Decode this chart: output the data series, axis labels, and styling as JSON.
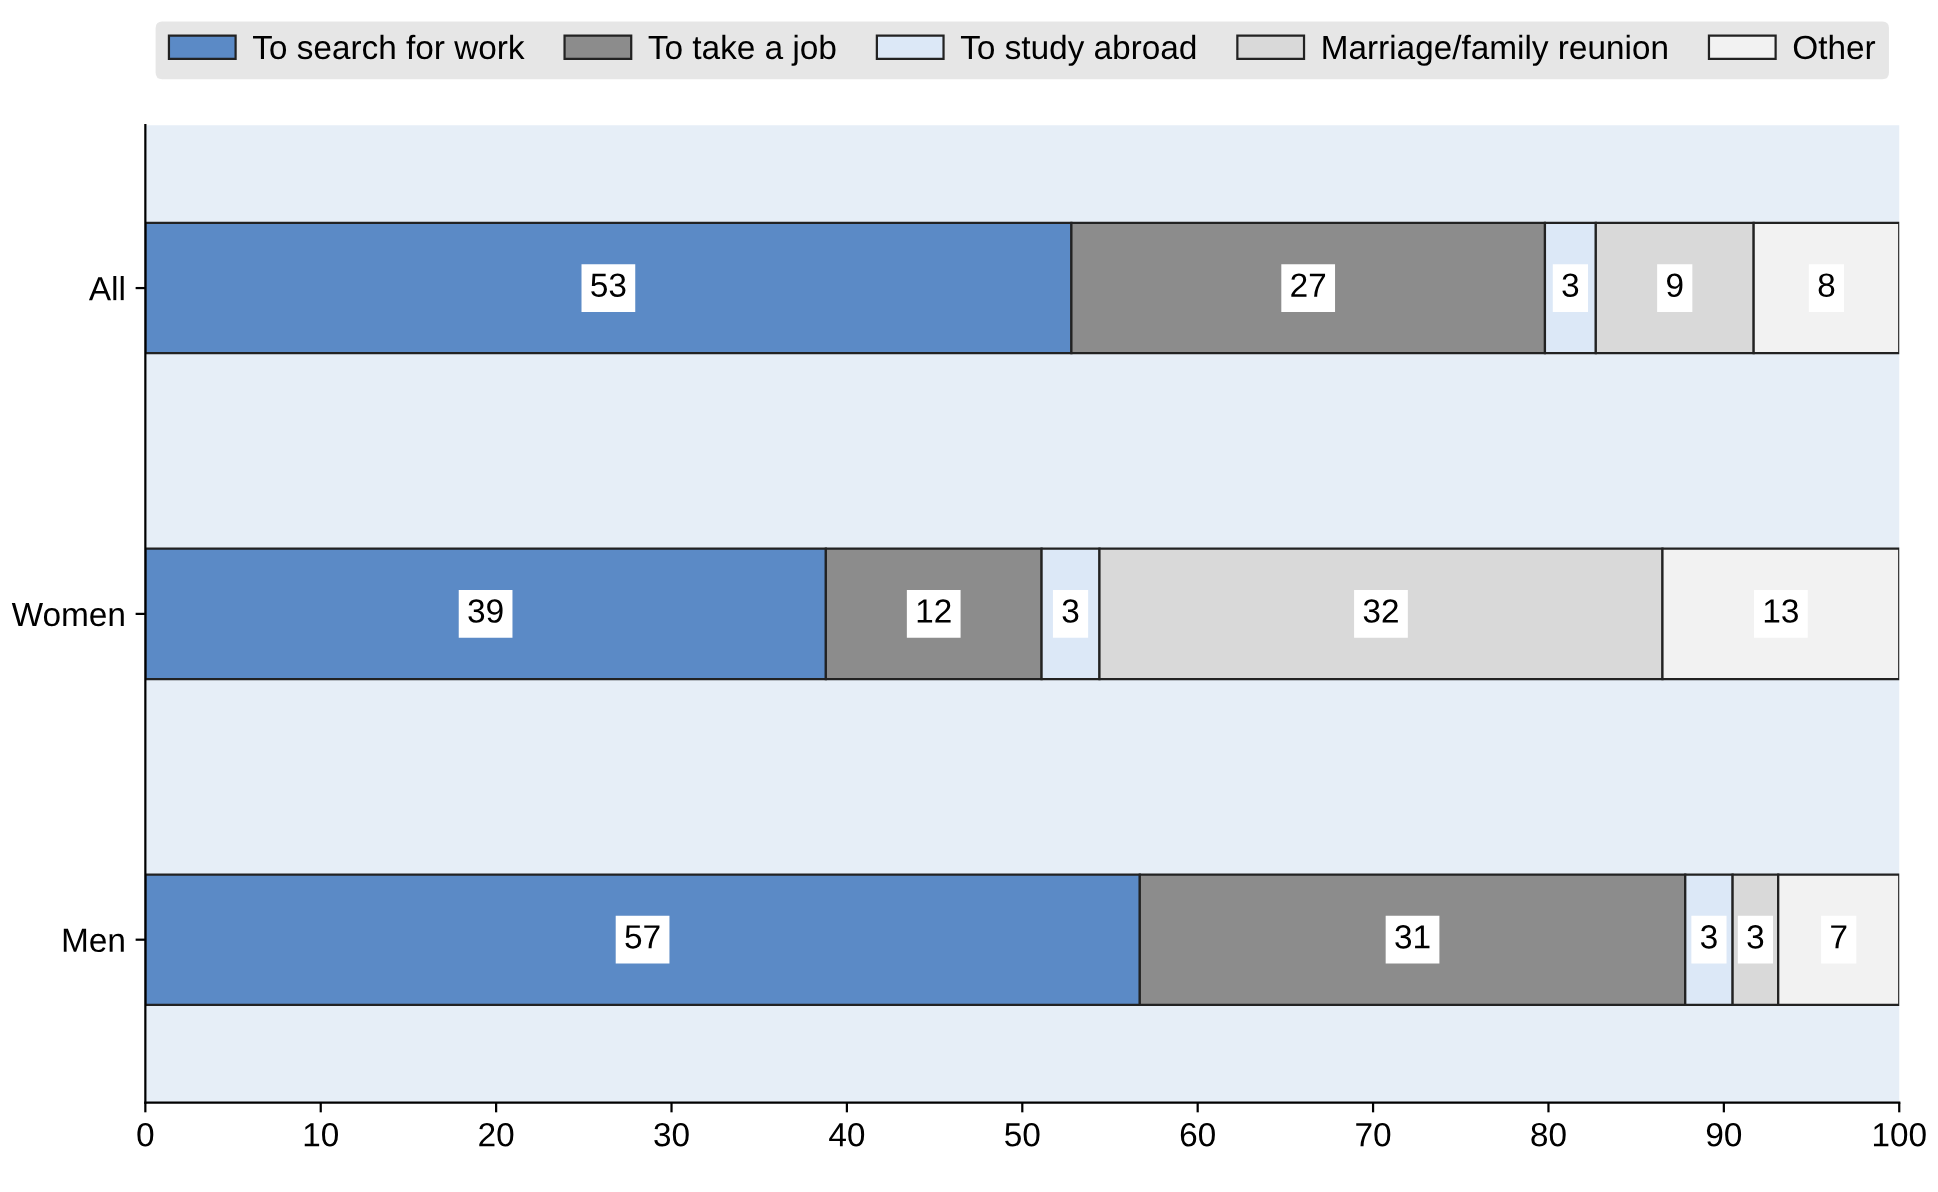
{
  "chart_data": {
    "type": "bar",
    "orientation": "horizontal",
    "stacked": true,
    "legend": "top",
    "grid": false,
    "categories": [
      "All",
      "Women",
      "Men"
    ],
    "series": [
      {
        "name": "To search for work",
        "color": "#5b8ac6",
        "values": [
          52.8,
          38.8,
          56.7
        ],
        "value_labels": [
          "53",
          "39",
          "57"
        ]
      },
      {
        "name": "To take a job",
        "color": "#8c8c8c",
        "values": [
          27,
          12.3,
          31.1
        ],
        "value_labels": [
          "27",
          "12",
          "31"
        ]
      },
      {
        "name": "To study abroad",
        "color": "#dce8f7",
        "values": [
          2.9,
          3.3,
          2.7
        ],
        "value_labels": [
          "3",
          "3",
          "3"
        ]
      },
      {
        "name": "Marriage/family reunion",
        "color": "#d9d9d9",
        "values": [
          9,
          32.1,
          2.6
        ],
        "value_labels": [
          "9",
          "32",
          "3"
        ]
      },
      {
        "name": "Other",
        "color": "#f2f2f2",
        "values": [
          8.3,
          13.5,
          6.9
        ],
        "value_labels": [
          "8",
          "13",
          "7"
        ]
      }
    ],
    "xlim": [
      0,
      100
    ],
    "xticks": [
      0,
      10,
      20,
      30,
      40,
      50,
      60,
      70,
      80,
      90,
      100
    ]
  }
}
